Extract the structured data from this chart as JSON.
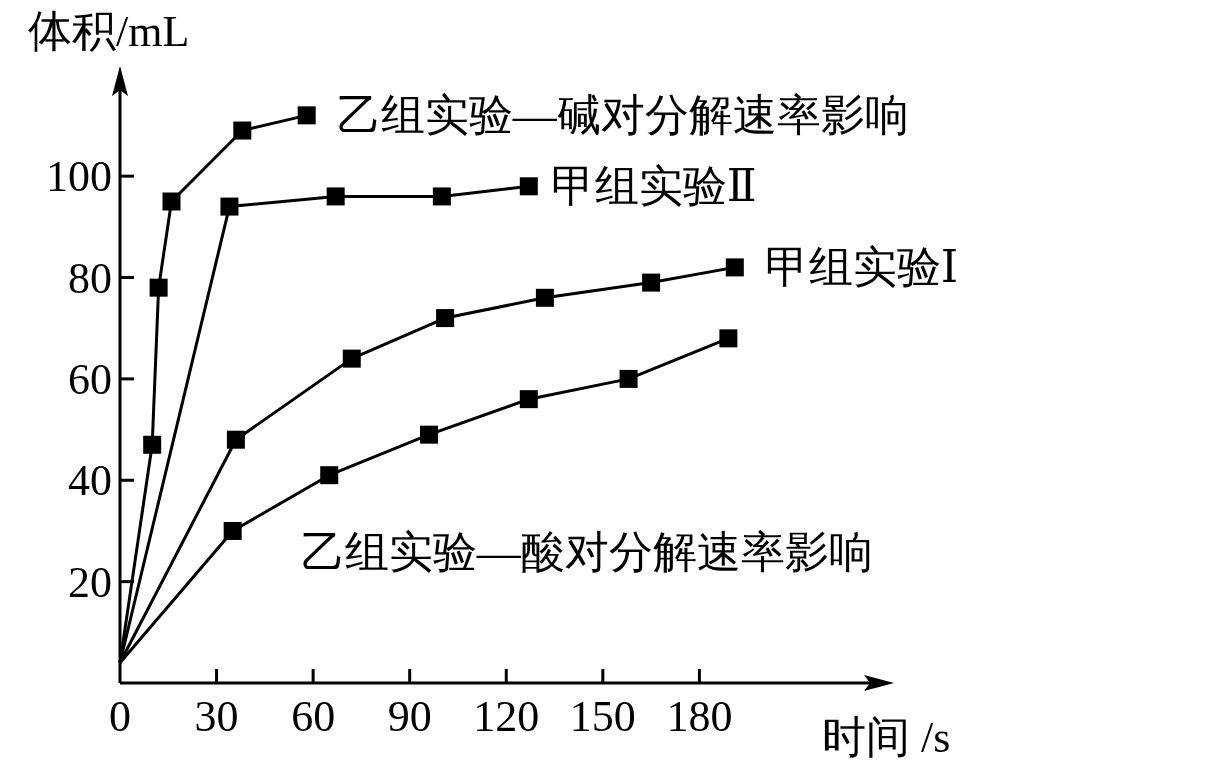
{
  "chart_data": {
    "type": "line",
    "xlabel": "时间 /s",
    "ylabel": "体积/mL",
    "xlim": [
      0,
      233
    ],
    "ylim": [
      0,
      117
    ],
    "xticks": [
      0,
      30,
      60,
      90,
      120,
      150,
      180
    ],
    "yticks": [
      20,
      40,
      60,
      80,
      100
    ],
    "marker": "square",
    "grid": false,
    "series": [
      {
        "name": "乙组实验—碱对分解速率影响",
        "color": "#000000",
        "x": [
          0,
          10,
          12,
          16,
          38,
          58
        ],
        "values": [
          4,
          47,
          78,
          95,
          109,
          112
        ]
      },
      {
        "name": "甲组实验Ⅱ",
        "color": "#000000",
        "x": [
          0,
          34,
          67,
          100,
          127
        ],
        "values": [
          4,
          94,
          96,
          96,
          98
        ]
      },
      {
        "name": "甲组实验Ⅰ",
        "color": "#000000",
        "x": [
          0,
          36,
          72,
          101,
          132,
          165,
          191
        ],
        "values": [
          4,
          48,
          64,
          72,
          76,
          79,
          82
        ]
      },
      {
        "name": "乙组实验—酸对分解速率影响",
        "color": "#000000",
        "x": [
          0,
          35,
          65,
          96,
          127,
          158,
          189
        ],
        "values": [
          4,
          30,
          41,
          49,
          56,
          60,
          68
        ]
      }
    ]
  }
}
